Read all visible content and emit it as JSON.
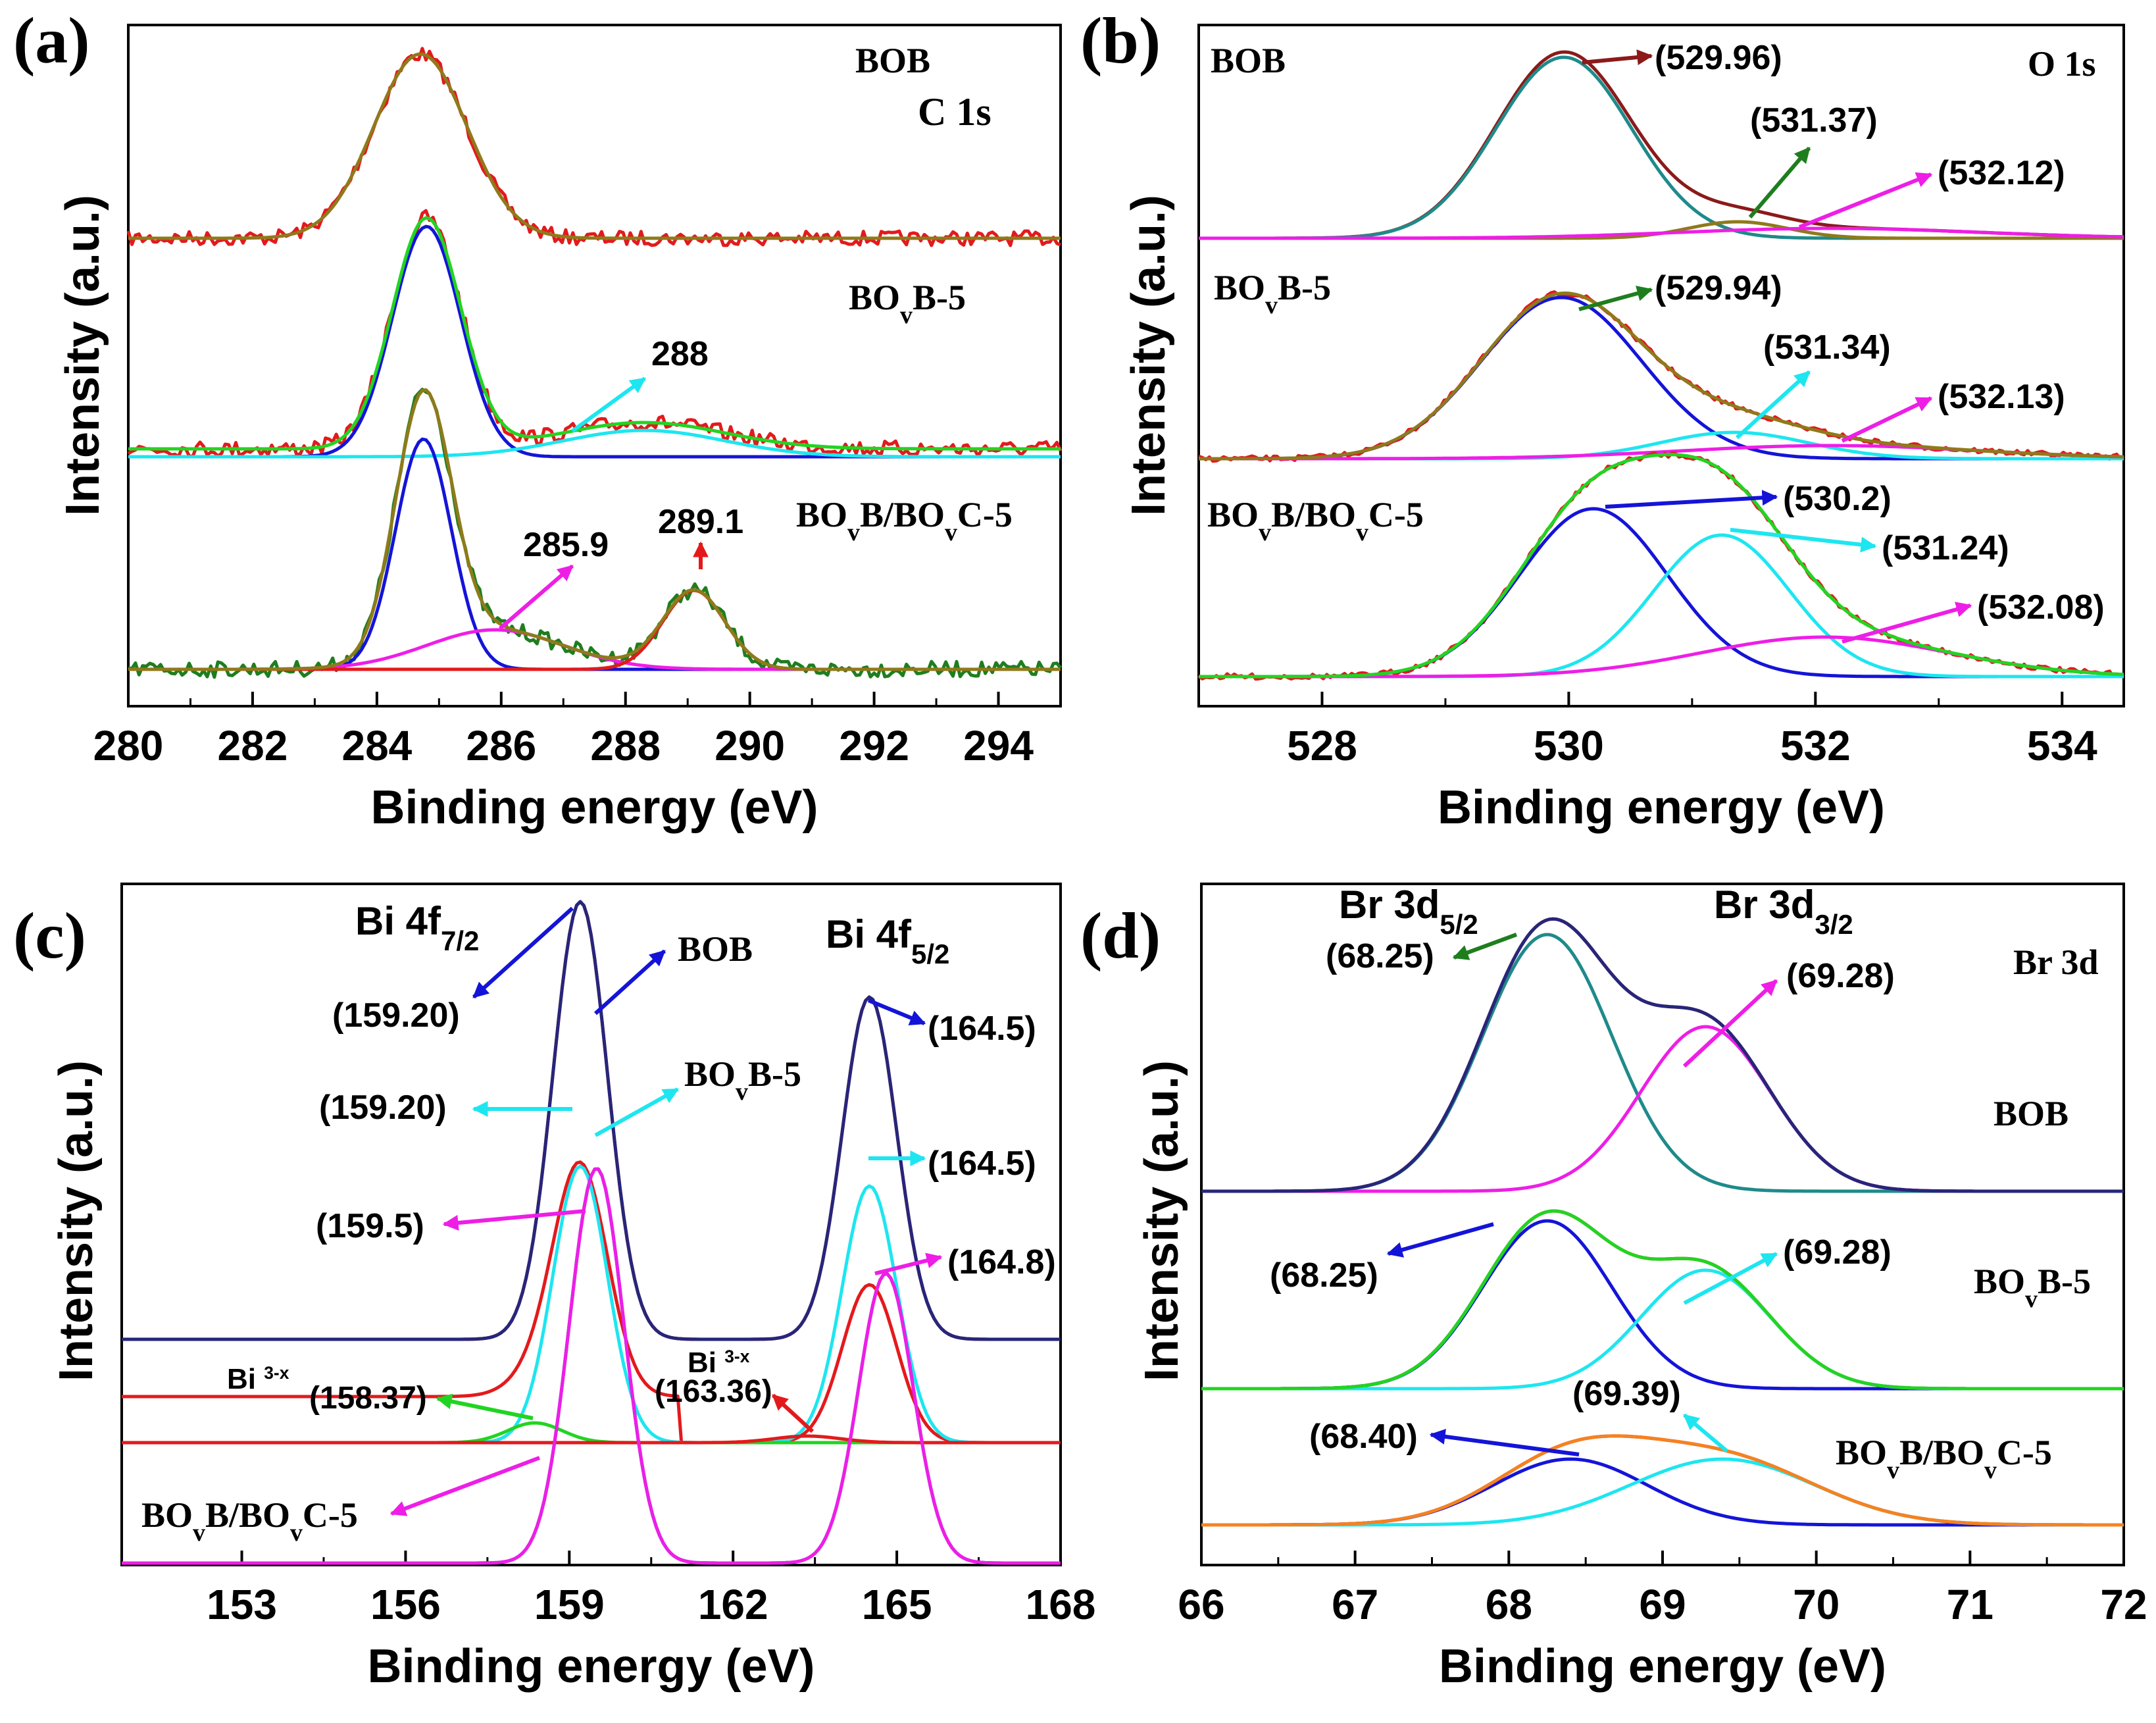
{
  "panels": [
    {
      "id": "a",
      "letter": "(a)",
      "core": "C 1s",
      "xlabel": "Binding energy (eV)",
      "ylabel": "Intensity (a.u.)",
      "xlim": [
        280,
        295
      ],
      "xticks": [
        280,
        282,
        284,
        286,
        288,
        290,
        292,
        294
      ],
      "chart_data": {
        "type": "line",
        "title": "C 1s",
        "xlabel": "Binding energy (eV)",
        "ylabel": "Intensity (a.u.)",
        "xlim": [
          280,
          295
        ],
        "samples": [
          "BOB",
          "BO<sub>v</sub>B-5",
          "BO<sub>v</sub>B/BO<sub>v</sub>C-5"
        ],
        "peak_annotations": [
          "288",
          "285.9",
          "289.1"
        ]
      }
    },
    {
      "id": "b",
      "letter": "(b)",
      "core": "O 1s",
      "xlabel": "Binding energy (eV)",
      "ylabel": "Intensity (a.u.)",
      "xlim": [
        527,
        534.5
      ],
      "xticks": [
        528,
        530,
        532,
        534
      ],
      "chart_data": {
        "type": "line",
        "title": "O 1s",
        "xlabel": "Binding energy (eV)",
        "ylabel": "Intensity (a.u.)",
        "xlim": [
          527,
          534.5
        ],
        "samples": [
          "BOB",
          "BO<sub>v</sub>B-5",
          "BO<sub>v</sub>B/BO<sub>v</sub>C-5"
        ],
        "peak_annotations": [
          "(529.96)",
          "(531.37)",
          "(532.12)",
          "(529.94)",
          "(531.34)",
          "(532.13)",
          "(530.2)",
          "(531.24)",
          "(532.08)"
        ]
      }
    },
    {
      "id": "c",
      "letter": "(c)",
      "core": "Bi 4f",
      "xlabel": "Binding energy (eV)",
      "ylabel": "Intensity (a.u.)",
      "xlim": [
        150.8,
        168
      ],
      "xticks": [
        153,
        156,
        159,
        162,
        165,
        168
      ],
      "chart_data": {
        "type": "line",
        "title": "Bi 4f",
        "xlabel": "Binding energy (eV)",
        "ylabel": "Intensity (a.u.)",
        "xlim": [
          150.8,
          168
        ],
        "peak_labels": [
          "Bi 4f<sub>7/2</sub>",
          "Bi 4f<sub>5/2</sub>"
        ],
        "samples": [
          "BOB",
          "BO<sub>v</sub>B-5",
          "BO<sub>v</sub>B/BO<sub>v</sub>C-5"
        ],
        "peak_annotations": [
          "(159.20)",
          "(164.5)",
          "(159.20)",
          "(164.5)",
          "(159.5)",
          "(164.8)",
          "(158.37)",
          "(163.36)"
        ],
        "species": "Bi <sup>3-x</sup>"
      }
    },
    {
      "id": "d",
      "letter": "(d)",
      "core": "Br 3d",
      "xlabel": "Binding energy (eV)",
      "ylabel": "Intensity (a.u.)",
      "xlim": [
        66,
        72
      ],
      "xticks": [
        66,
        67,
        68,
        69,
        70,
        71,
        72
      ],
      "chart_data": {
        "type": "line",
        "title": "Br 3d",
        "xlabel": "Binding energy (eV)",
        "ylabel": "Intensity (a.u.)",
        "xlim": [
          66,
          72
        ],
        "peak_labels": [
          "Br 3d<sub>5/2</sub>",
          "Br 3d<sub>3/2</sub>"
        ],
        "samples": [
          "BOB",
          "BO<sub>v</sub>B-5",
          "BO<sub>v</sub>B/BO<sub>v</sub>C-5"
        ],
        "peak_annotations": [
          "(68.25)",
          "(69.28)",
          "(68.25)",
          "(69.28)",
          "(68.40)",
          "(69.39)"
        ]
      }
    }
  ],
  "colors": {
    "red": "#e31a1c",
    "olive": "#8f7a1b",
    "green": "#22d422",
    "blue": "#1414d8",
    "cyan": "#1de6f0",
    "magenta": "#ee1ee6",
    "darkred": "#8b1a1a",
    "teal": "#1f8a8a",
    "navy": "#26267a",
    "orange": "#f58220",
    "darkgreen": "#1e7e1e",
    "axis": "#000000"
  }
}
